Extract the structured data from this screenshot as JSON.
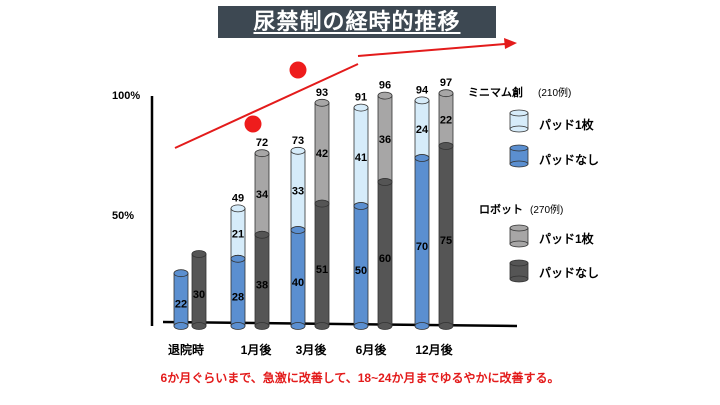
{
  "title": "尿禁制の経時的推移",
  "footnote": "6か月ぐらいまで、急激に改善して、18~24か月までゆるやかに改善する。",
  "colors": {
    "min_nopad": "#5b8fd0",
    "min_pad": "#d6ecfa",
    "rob_nopad": "#555555",
    "rob_pad": "#a7a6a6",
    "trend_arrow": "#e31b1b",
    "dot": "#ee1c1c"
  },
  "chart_data": {
    "type": "bar",
    "subtype": "stacked-cylinder",
    "title": "尿禁制の経時的推移",
    "categories": [
      "退院時",
      "1月後",
      "3月後",
      "6月後",
      "12月後"
    ],
    "y_tick_labels": [
      "100%",
      "50%"
    ],
    "ylim": [
      0,
      100
    ],
    "groups": [
      {
        "name": "ミニマム創",
        "note": "(210例)",
        "series": [
          {
            "name": "パッドなし",
            "values": [
              22,
              28,
              40,
              50,
              70
            ]
          },
          {
            "name": "パッド1枚",
            "values": [
              null,
              21,
              33,
              41,
              24
            ]
          }
        ],
        "totals": [
          null,
          49,
          73,
          91,
          94
        ]
      },
      {
        "name": "ロボット",
        "note": "(270例)",
        "series": [
          {
            "name": "パッドなし",
            "values": [
              30,
              38,
              51,
              60,
              75
            ]
          },
          {
            "name": "パッド1枚",
            "values": [
              null,
              34,
              42,
              36,
              22
            ]
          }
        ],
        "totals": [
          null,
          72,
          93,
          96,
          97
        ]
      }
    ],
    "legend": {
      "placement": "right",
      "min_header": "ミニマム創",
      "min_note": "(210例)",
      "rob_header": "ロボット",
      "rob_note": "(270例)",
      "pad_label": "パッド1枚",
      "nopad_label": "パッドなし"
    },
    "annotations": [
      "trend-arrow",
      "red-dot",
      "red-dot"
    ]
  }
}
